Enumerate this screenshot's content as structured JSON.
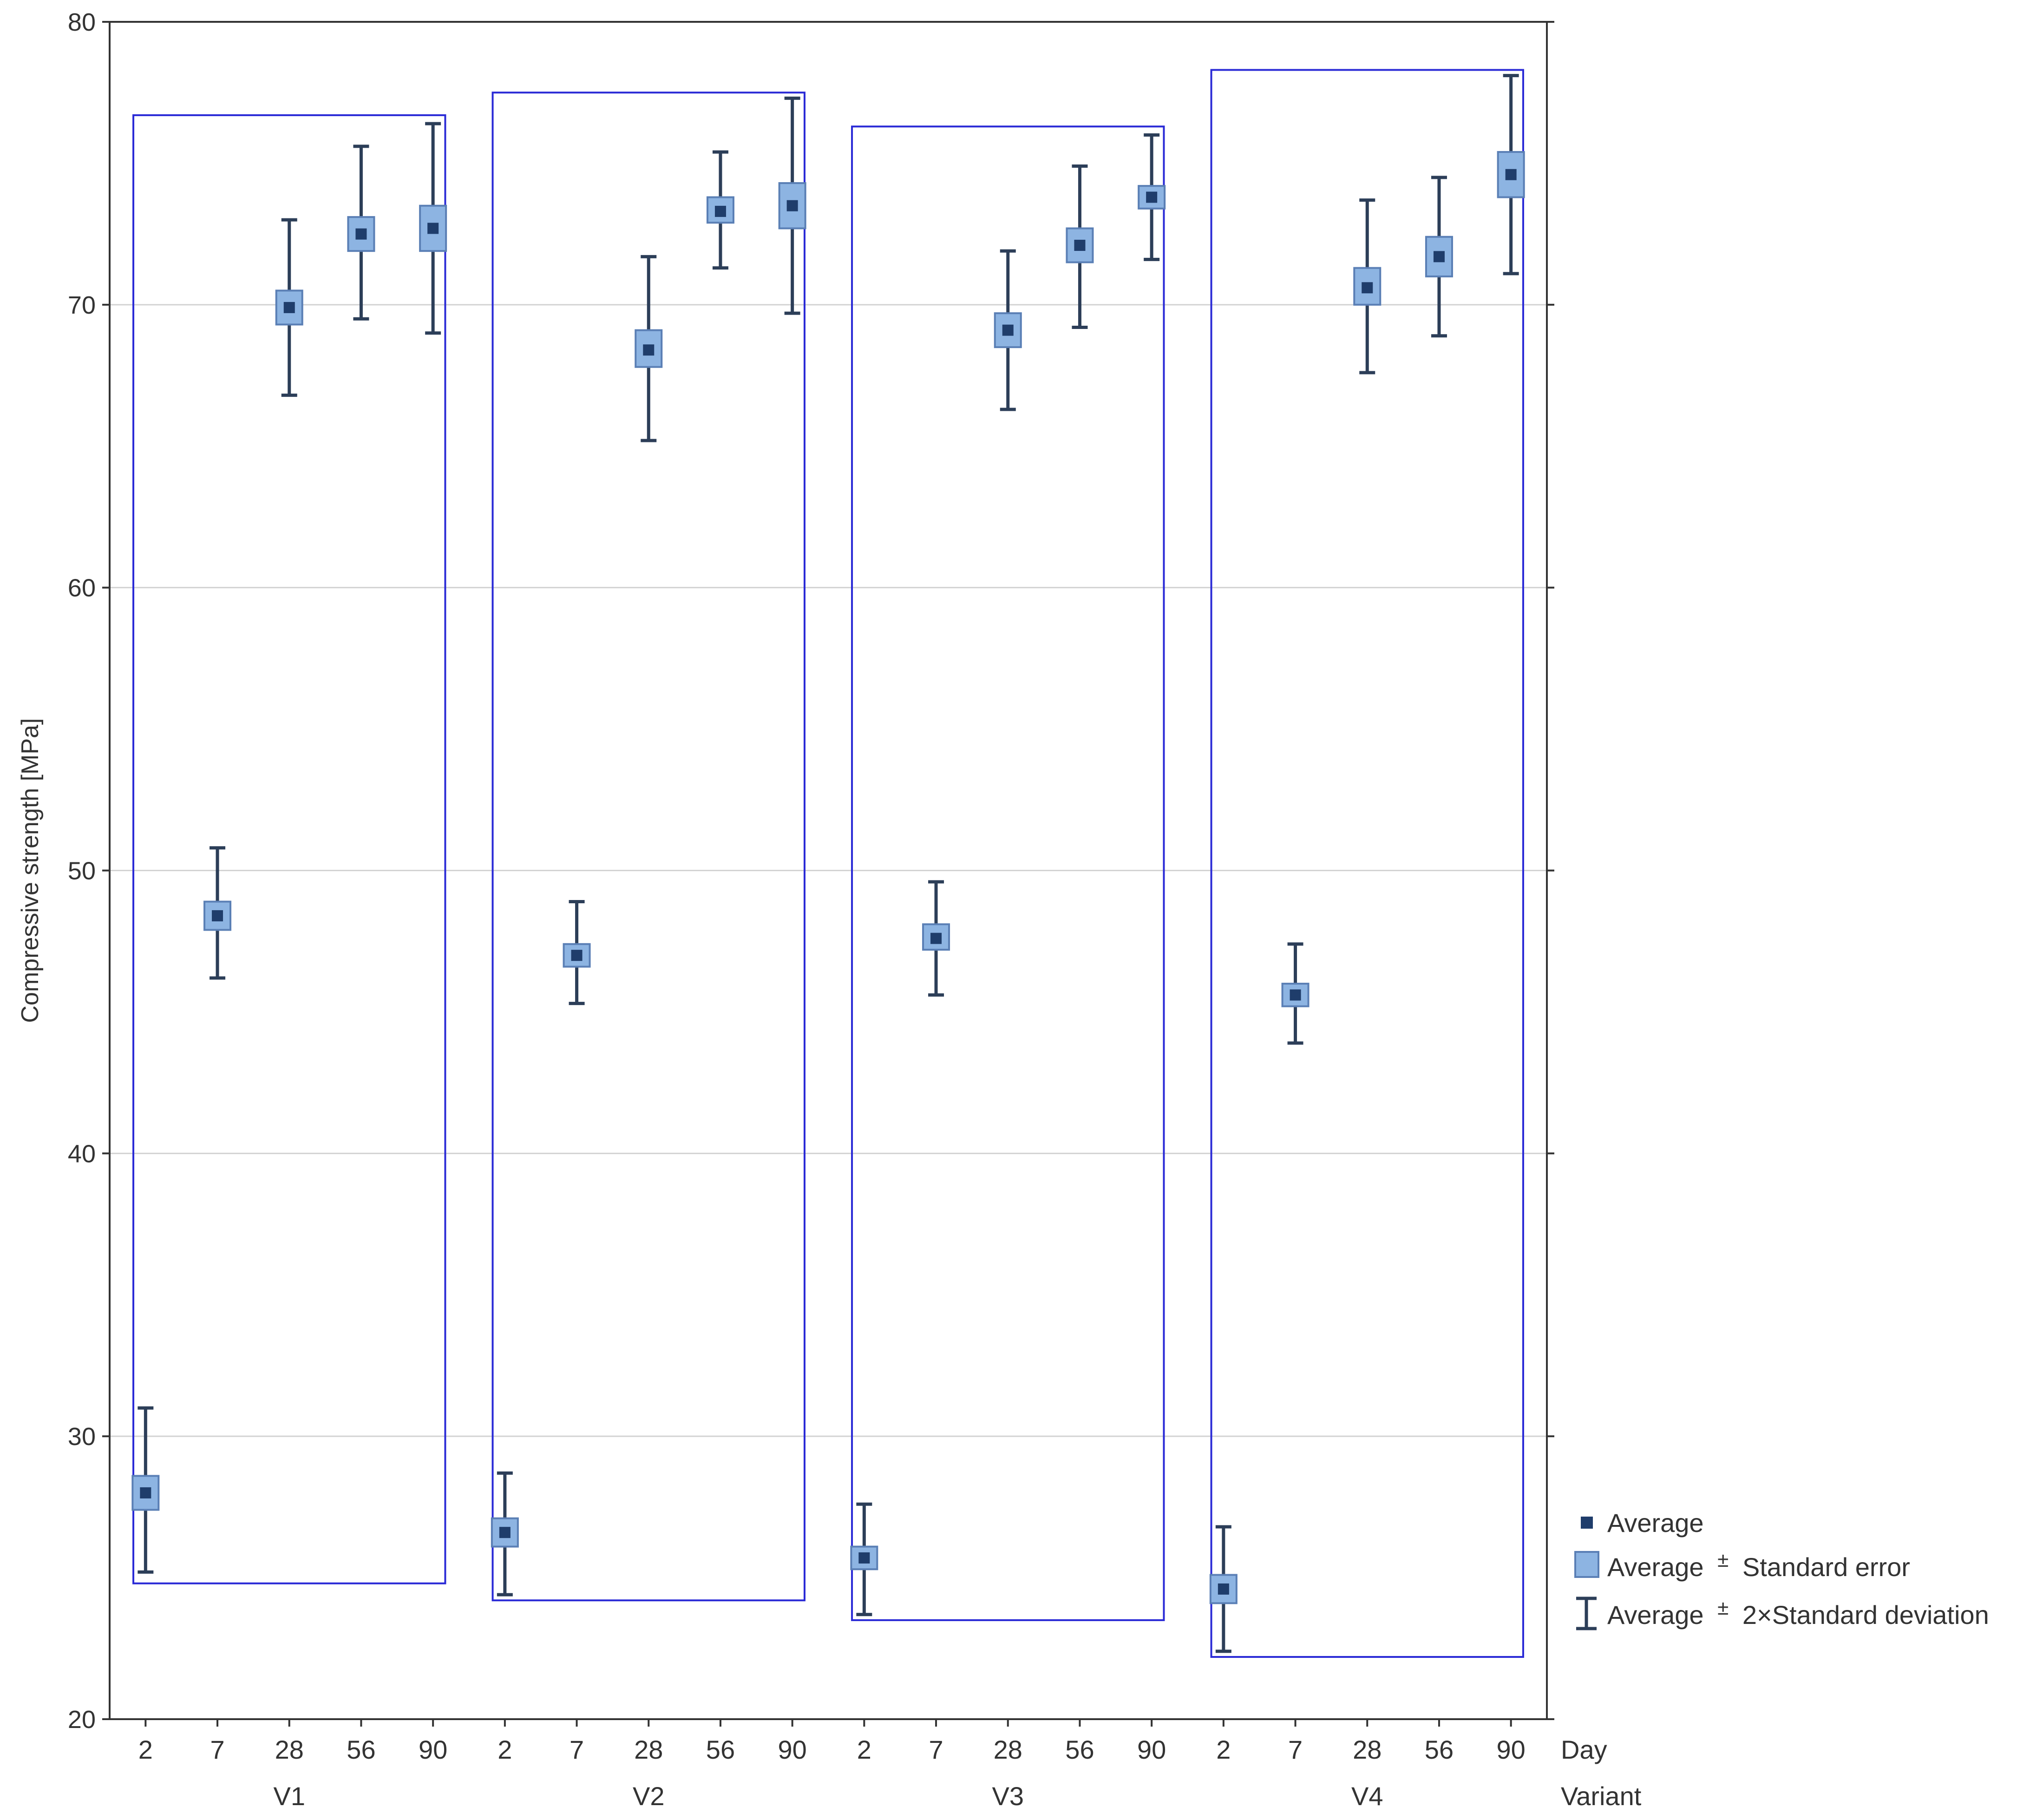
{
  "chart_data": {
    "type": "scatter",
    "ylabel": "Compressive strength [MPa]",
    "xlabel_day": "Day",
    "xlabel_variant": "Variant",
    "ylim": [
      20,
      80
    ],
    "yticks": [
      "20",
      "30",
      "40",
      "50",
      "60",
      "70",
      "80"
    ],
    "grid": true,
    "legend_position": "right-bottom",
    "legend": {
      "average": "Average",
      "se_prefix": "Average",
      "se_pm": "±",
      "se_suffix": "Standard error",
      "sd_prefix": "Average",
      "sd_pm": "±",
      "sd_suffix": "2×Standard deviation"
    },
    "days": [
      "2",
      "7",
      "28",
      "56",
      "90"
    ],
    "groups": [
      {
        "variant": "V1",
        "points": [
          {
            "day": "2",
            "mean": 28.0,
            "se_low": 27.4,
            "se_high": 28.6,
            "sd_low": 25.2,
            "sd_high": 31.0
          },
          {
            "day": "7",
            "mean": 48.4,
            "se_low": 47.9,
            "se_high": 48.9,
            "sd_low": 46.2,
            "sd_high": 50.8
          },
          {
            "day": "28",
            "mean": 69.9,
            "se_low": 69.3,
            "se_high": 70.5,
            "sd_low": 66.8,
            "sd_high": 73.0
          },
          {
            "day": "56",
            "mean": 72.5,
            "se_low": 71.9,
            "se_high": 73.1,
            "sd_low": 69.5,
            "sd_high": 75.6
          },
          {
            "day": "90",
            "mean": 72.7,
            "se_low": 71.9,
            "se_high": 73.5,
            "sd_low": 69.0,
            "sd_high": 76.4
          }
        ]
      },
      {
        "variant": "V2",
        "points": [
          {
            "day": "2",
            "mean": 26.6,
            "se_low": 26.1,
            "se_high": 27.1,
            "sd_low": 24.4,
            "sd_high": 28.7
          },
          {
            "day": "7",
            "mean": 47.0,
            "se_low": 46.6,
            "se_high": 47.4,
            "sd_low": 45.3,
            "sd_high": 48.9
          },
          {
            "day": "28",
            "mean": 68.4,
            "se_low": 67.8,
            "se_high": 69.1,
            "sd_low": 65.2,
            "sd_high": 71.7
          },
          {
            "day": "56",
            "mean": 73.3,
            "se_low": 72.9,
            "se_high": 73.8,
            "sd_low": 71.3,
            "sd_high": 75.4
          },
          {
            "day": "90",
            "mean": 73.5,
            "se_low": 72.7,
            "se_high": 74.3,
            "sd_low": 69.7,
            "sd_high": 77.3
          }
        ]
      },
      {
        "variant": "V3",
        "points": [
          {
            "day": "2",
            "mean": 25.7,
            "se_low": 25.3,
            "se_high": 26.1,
            "sd_low": 23.7,
            "sd_high": 27.6
          },
          {
            "day": "7",
            "mean": 47.6,
            "se_low": 47.2,
            "se_high": 48.1,
            "sd_low": 45.6,
            "sd_high": 49.6
          },
          {
            "day": "28",
            "mean": 69.1,
            "se_low": 68.5,
            "se_high": 69.7,
            "sd_low": 66.3,
            "sd_high": 71.9
          },
          {
            "day": "56",
            "mean": 72.1,
            "se_low": 71.5,
            "se_high": 72.7,
            "sd_low": 69.2,
            "sd_high": 74.9
          },
          {
            "day": "90",
            "mean": 73.8,
            "se_low": 73.4,
            "se_high": 74.2,
            "sd_low": 71.6,
            "sd_high": 76.0
          }
        ]
      },
      {
        "variant": "V4",
        "points": [
          {
            "day": "2",
            "mean": 24.6,
            "se_low": 24.1,
            "se_high": 25.1,
            "sd_low": 22.4,
            "sd_high": 26.8
          },
          {
            "day": "7",
            "mean": 45.6,
            "se_low": 45.2,
            "se_high": 46.0,
            "sd_low": 43.9,
            "sd_high": 47.4
          },
          {
            "day": "28",
            "mean": 70.6,
            "se_low": 70.0,
            "se_high": 71.3,
            "sd_low": 67.6,
            "sd_high": 73.7
          },
          {
            "day": "56",
            "mean": 71.7,
            "se_low": 71.0,
            "se_high": 72.4,
            "sd_low": 68.9,
            "sd_high": 74.5
          },
          {
            "day": "90",
            "mean": 74.6,
            "se_low": 73.8,
            "se_high": 75.4,
            "sd_low": 71.1,
            "sd_high": 78.1
          }
        ]
      }
    ],
    "group_boxes": [
      {
        "variant": "V1",
        "y_low": 24.8,
        "y_high": 76.7
      },
      {
        "variant": "V2",
        "y_low": 24.2,
        "y_high": 77.5
      },
      {
        "variant": "V3",
        "y_low": 23.5,
        "y_high": 76.3
      },
      {
        "variant": "V4",
        "y_low": 22.2,
        "y_high": 78.3
      }
    ],
    "colors": {
      "mean_marker": "#1f3d6b",
      "se_fill": "#8db4e2",
      "se_stroke": "#5a7fb5",
      "sd_line": "#2c3e58",
      "group_box": "#2a2ad6",
      "grid": "#d3d3d3",
      "axis": "#333333"
    }
  }
}
